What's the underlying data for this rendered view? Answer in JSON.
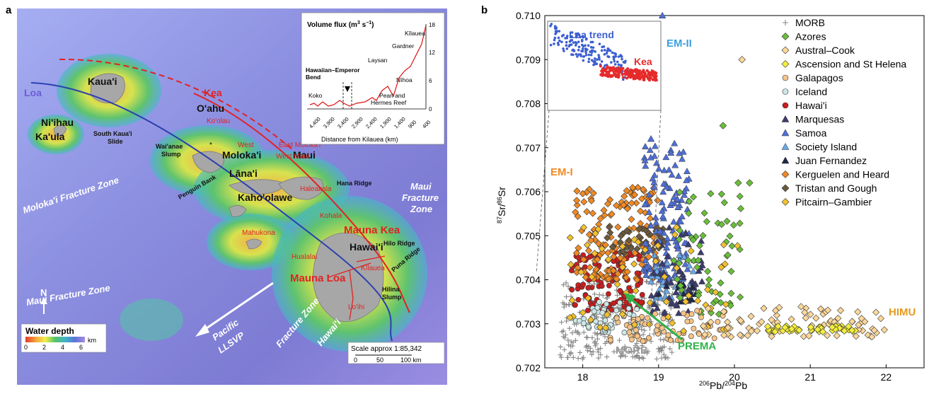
{
  "figure": {
    "panel_a_letter": "a",
    "panel_b_letter": "b"
  },
  "map": {
    "islands": [
      "Kaua'i",
      "Ni'ihau",
      "Ka'ula",
      "O'ahu",
      "Moloka'i",
      "Maui",
      "Lāna'i",
      "Kaho'olawe",
      "Hawai'i"
    ],
    "volcanoes": [
      "Ko'olau",
      "West",
      "East Moloka'i",
      "West Maui",
      "Haleakala",
      "Kohala",
      "Mahukona",
      "Mauna Kea",
      "Hualalai",
      "Mauna Loa",
      "Kīlauea",
      "Lo'ihi"
    ],
    "features": {
      "loa": "Loa",
      "kea": "Kea",
      "south_kauai_slide_1": "South Kaua'i",
      "south_kauai_slide_2": "Slide",
      "waianae_slump_1": "Wai'anae",
      "waianae_slump_2": "Slump",
      "penguin_bank": "Penguin Bank",
      "hana_ridge": "Hana  Ridge",
      "hilo_ridge": "Hilo  Ridge",
      "puna_ridge": "Puna  Ridge",
      "hilina_slump_1": "Hilina",
      "hilina_slump_2": "Slump",
      "molokai_fz": "Moloka'i Fracture Zone",
      "maui_fz_left": "Maui Fracture Zone",
      "maui_fz_right_1": "Maui",
      "maui_fz_right_2": "Fracture",
      "maui_fz_right_3": "Zone",
      "hawaii_fz_1": "Hawai'i",
      "hawaii_fz_2": "Fracture Zone",
      "pacific_1": "Pacific",
      "pacific_2": "LLSVP",
      "north": "N"
    },
    "legend": {
      "title": "Water depth",
      "unit": "km",
      "ticks": [
        "0",
        "2",
        "4",
        "6"
      ]
    },
    "scale": {
      "text": "Scale approx 1:85,342",
      "ticks": [
        "0",
        "50",
        "100 km"
      ]
    },
    "inset": {
      "title": "Volume flux (m",
      "title_sup": "3",
      "title_mid": " s",
      "title_sup2": "−1",
      "title_end": ")",
      "xlabel": "Distance from Kilauea (km)",
      "x_ticks": [
        "4,400",
        "3,900",
        "3,400",
        "2,900",
        "2,400",
        "1,900",
        "1,400",
        "900",
        "400"
      ],
      "y_ticks": [
        "0",
        "6",
        "12",
        "18"
      ],
      "labels": [
        "Kīlauea",
        "Gardner",
        "Laysan",
        "Nīhoa",
        "Hawaiian–Emperor",
        "Bend",
        "Koko",
        "Pearl and",
        "Hermes Reef"
      ]
    }
  },
  "chart_data": {
    "type": "scatter",
    "xlabel_base": "Pb/",
    "xlabel_sup1": "206",
    "xlabel_sup2": "204",
    "xlabel_end": "Pb",
    "ylabel_sup1": "87",
    "ylabel_mid": "Sr/",
    "ylabel_sup2": "86",
    "ylabel_end": "Sr",
    "xlim": [
      17.5,
      22.5
    ],
    "ylim": [
      0.702,
      0.71
    ],
    "x_ticks": [
      "18",
      "19",
      "20",
      "21",
      "22"
    ],
    "y_ticks": [
      "0.702",
      "0.703",
      "0.704",
      "0.705",
      "0.706",
      "0.707",
      "0.708",
      "0.709",
      "0.710"
    ],
    "legend_position": "top-right",
    "annotations": [
      "EM-II",
      "EM-I",
      "HIMU",
      "MORB",
      "PREMA"
    ],
    "inset_labels": [
      "Loa trend",
      "Kea",
      "trend"
    ],
    "series": [
      {
        "name": "MORB",
        "color": "#888888",
        "marker": "plus"
      },
      {
        "name": "Azores",
        "color": "#6abf3a",
        "marker": "diamond"
      },
      {
        "name": "Austral–Cook",
        "color": "#fcd79a",
        "marker": "diamond"
      },
      {
        "name": "Ascension and St Helena",
        "color": "#f4ee3c",
        "marker": "diamond"
      },
      {
        "name": "Galapagos",
        "color": "#f6c488",
        "marker": "circle"
      },
      {
        "name": "Iceland",
        "color": "#cde7e7",
        "marker": "circle"
      },
      {
        "name": "Hawai'i",
        "color": "#c81e1e",
        "marker": "circle"
      },
      {
        "name": "Marquesas",
        "color": "#3b3b6e",
        "marker": "triangle"
      },
      {
        "name": "Samoa",
        "color": "#4f6fd6",
        "marker": "triangle"
      },
      {
        "name": "Society Island",
        "color": "#6aa9e8",
        "marker": "triangle"
      },
      {
        "name": "Juan Fernandez",
        "color": "#1e2846",
        "marker": "triangle"
      },
      {
        "name": "Kerguelen and Heard",
        "color": "#f08a24",
        "marker": "diamond"
      },
      {
        "name": "Tristan and Gough",
        "color": "#6b5a3e",
        "marker": "diamond"
      },
      {
        "name": "Pitcairn–Gambier",
        "color": "#f2c12e",
        "marker": "diamond"
      }
    ],
    "clusters": [
      {
        "series": "MORB",
        "x": [
          17.7,
          19.2
        ],
        "y": [
          0.7022,
          0.704
        ],
        "n": 260
      },
      {
        "series": "Hawai'i",
        "x": [
          17.85,
          18.8
        ],
        "y": [
          0.7033,
          0.7047
        ],
        "n": 120
      },
      {
        "series": "Iceland",
        "x": [
          17.9,
          18.8
        ],
        "y": [
          0.7028,
          0.7035
        ],
        "n": 50
      },
      {
        "series": "Kerguelen and Heard",
        "x": [
          17.9,
          19.0
        ],
        "y": [
          0.704,
          0.7061
        ],
        "n": 150
      },
      {
        "series": "Tristan and Gough",
        "x": [
          18.3,
          19.1
        ],
        "y": [
          0.7046,
          0.7052
        ],
        "n": 40
      },
      {
        "series": "Samoa",
        "x": [
          18.8,
          19.4
        ],
        "y": [
          0.704,
          0.7071
        ],
        "n": 140
      },
      {
        "series": "Society Island",
        "x": [
          18.9,
          19.5
        ],
        "y": [
          0.7035,
          0.7046
        ],
        "n": 40
      },
      {
        "series": "Marquesas",
        "x": [
          18.9,
          19.6
        ],
        "y": [
          0.7032,
          0.7052
        ],
        "n": 50
      },
      {
        "series": "Juan Fernandez",
        "x": [
          19.0,
          19.5
        ],
        "y": [
          0.7035,
          0.704
        ],
        "n": 15
      },
      {
        "series": "Azores",
        "x": [
          19.2,
          20.1
        ],
        "y": [
          0.7032,
          0.706
        ],
        "n": 60
      },
      {
        "series": "Galapagos",
        "x": [
          18.3,
          19.9
        ],
        "y": [
          0.7026,
          0.7033
        ],
        "n": 70
      },
      {
        "series": "Pitcairn–Gambier",
        "x": [
          17.8,
          20.2
        ],
        "y": [
          0.7028,
          0.7052
        ],
        "n": 60
      },
      {
        "series": "Austral–Cook",
        "x": [
          19.5,
          22.0
        ],
        "y": [
          0.7027,
          0.7034
        ],
        "n": 80
      },
      {
        "series": "Ascension and St Helena",
        "x": [
          20.4,
          21.6
        ],
        "y": [
          0.70282,
          0.70296
        ],
        "n": 50
      }
    ],
    "points": [
      {
        "series": "Austral–Cook",
        "x": 20.1,
        "y": 0.709
      },
      {
        "series": "Azores",
        "x": 19.85,
        "y": 0.7075
      },
      {
        "series": "Azores",
        "x": 20.2,
        "y": 0.7062
      },
      {
        "series": "Azores",
        "x": 20.05,
        "y": 0.7062
      },
      {
        "series": "Samoa",
        "x": 19.05,
        "y": 0.71
      },
      {
        "series": "Samoa",
        "x": 18.9,
        "y": 0.7072
      }
    ]
  }
}
